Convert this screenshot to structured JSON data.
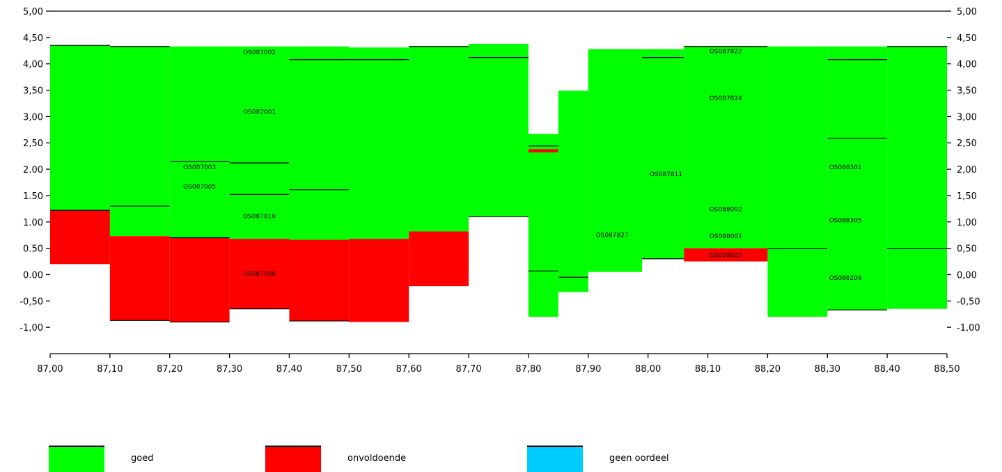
{
  "colors": {
    "goed": "#00ff00",
    "onvoldoende": "#ff0000",
    "geen_oordeel": "#00ccff",
    "axis": "#000000"
  },
  "chart_data": {
    "type": "bar",
    "x_ticks": [
      "87,00",
      "87,10",
      "87,20",
      "87,30",
      "87,40",
      "87,50",
      "87,60",
      "87,70",
      "87,80",
      "87,90",
      "88,00",
      "88,10",
      "88,20",
      "88,30",
      "88,40",
      "88,50"
    ],
    "y_ticks_left": [
      "5,00",
      "4,50",
      "4,00",
      "3,50",
      "3,00",
      "2,50",
      "2.00",
      "1.50",
      "1.00",
      "0.50",
      "0.00",
      "-0,50",
      "-1,00"
    ],
    "y_ticks_right": [
      "5,00",
      "4,50",
      "4,00",
      "3,50",
      "3,00",
      "2,50",
      "2,00",
      "1,50",
      "1,00",
      "0,50",
      "0,00",
      "-0,50",
      "-1,00"
    ],
    "xlim": [
      87.0,
      88.5
    ],
    "ylim": [
      -1.5,
      5.0
    ],
    "grid": false,
    "legend": "bottom",
    "series": [
      {
        "name": "goed",
        "key": "goed",
        "segments": [
          {
            "x0": 87.0,
            "x1": 87.1,
            "y0": 1.22,
            "y1": 4.35
          },
          {
            "x0": 87.1,
            "x1": 87.2,
            "y0": 0.73,
            "y1": 4.33
          },
          {
            "x0": 87.2,
            "x1": 87.3,
            "y0": 0.7,
            "y1": 4.33
          },
          {
            "x0": 87.3,
            "x1": 87.4,
            "y0": 0.68,
            "y1": 4.33
          },
          {
            "x0": 87.4,
            "x1": 87.5,
            "y0": 0.66,
            "y1": 4.33
          },
          {
            "x0": 87.5,
            "x1": 87.6,
            "y0": 0.68,
            "y1": 4.31
          },
          {
            "x0": 87.6,
            "x1": 87.7,
            "y0": 0.82,
            "y1": 4.33
          },
          {
            "x0": 87.7,
            "x1": 87.8,
            "y0": 1.1,
            "y1": 4.38
          },
          {
            "x0": 87.8,
            "x1": 87.85,
            "y0": -0.8,
            "y1": 2.67
          },
          {
            "x0": 87.85,
            "x1": 87.9,
            "y0": -0.33,
            "y1": 3.49
          },
          {
            "x0": 87.9,
            "x1": 87.99,
            "y0": 0.05,
            "y1": 4.28
          },
          {
            "x0": 87.99,
            "x1": 88.06,
            "y0": 0.3,
            "y1": 4.28
          },
          {
            "x0": 88.06,
            "x1": 88.2,
            "y0": 0.5,
            "y1": 4.33
          },
          {
            "x0": 88.2,
            "x1": 88.3,
            "y0": -0.8,
            "y1": 4.33
          },
          {
            "x0": 88.3,
            "x1": 88.4,
            "y0": -0.67,
            "y1": 4.33
          },
          {
            "x0": 88.4,
            "x1": 88.5,
            "y0": -0.65,
            "y1": 4.33
          }
        ]
      },
      {
        "name": "onvoldoende",
        "key": "onvoldoende",
        "segments": [
          {
            "x0": 87.0,
            "x1": 87.1,
            "y0": 0.2,
            "y1": 1.22
          },
          {
            "x0": 87.1,
            "x1": 87.2,
            "y0": -0.87,
            "y1": 0.73
          },
          {
            "x0": 87.2,
            "x1": 87.3,
            "y0": -0.9,
            "y1": 0.7
          },
          {
            "x0": 87.3,
            "x1": 87.4,
            "y0": -0.65,
            "y1": 0.68
          },
          {
            "x0": 87.4,
            "x1": 87.5,
            "y0": -0.88,
            "y1": 0.66
          },
          {
            "x0": 87.5,
            "x1": 87.6,
            "y0": -0.9,
            "y1": 0.68
          },
          {
            "x0": 87.6,
            "x1": 87.7,
            "y0": -0.22,
            "y1": 0.82
          },
          {
            "x0": 87.8,
            "x1": 87.85,
            "y0": 2.32,
            "y1": 2.38
          },
          {
            "x0": 88.06,
            "x1": 88.2,
            "y0": 0.25,
            "y1": 0.5
          }
        ]
      },
      {
        "name": "geen oordeel",
        "key": "geen_oordeel",
        "segments": []
      }
    ],
    "boundaries": [
      {
        "x0": 87.0,
        "x1": 87.1,
        "y": 4.35
      },
      {
        "x0": 87.0,
        "x1": 87.1,
        "y": 1.22
      },
      {
        "x0": 87.1,
        "x1": 87.2,
        "y": 4.33
      },
      {
        "x0": 87.1,
        "x1": 87.2,
        "y": 1.3
      },
      {
        "x0": 87.1,
        "x1": 87.2,
        "y": -0.87
      },
      {
        "x0": 87.2,
        "x1": 87.3,
        "y": 2.15
      },
      {
        "x0": 87.2,
        "x1": 87.3,
        "y": 0.7
      },
      {
        "x0": 87.2,
        "x1": 87.3,
        "y": -0.9
      },
      {
        "x0": 87.3,
        "x1": 87.4,
        "y": 2.12
      },
      {
        "x0": 87.3,
        "x1": 87.4,
        "y": 1.52
      },
      {
        "x0": 87.3,
        "x1": 87.4,
        "y": -0.65
      },
      {
        "x0": 87.4,
        "x1": 87.6,
        "y": 4.08
      },
      {
        "x0": 87.4,
        "x1": 87.5,
        "y": 1.61
      },
      {
        "x0": 87.4,
        "x1": 87.5,
        "y": -0.88
      },
      {
        "x0": 87.6,
        "x1": 87.7,
        "y": 4.33
      },
      {
        "x0": 87.7,
        "x1": 87.8,
        "y": 4.12
      },
      {
        "x0": 87.7,
        "x1": 87.8,
        "y": 1.1
      },
      {
        "x0": 87.8,
        "x1": 87.85,
        "y": 2.44
      },
      {
        "x0": 87.8,
        "x1": 87.85,
        "y": 0.07
      },
      {
        "x0": 87.85,
        "x1": 87.9,
        "y": -0.05
      },
      {
        "x0": 87.99,
        "x1": 88.06,
        "y": 4.12
      },
      {
        "x0": 87.99,
        "x1": 88.06,
        "y": 0.3
      },
      {
        "x0": 88.06,
        "x1": 88.2,
        "y": 4.33
      },
      {
        "x0": 88.2,
        "x1": 88.3,
        "y": 0.5
      },
      {
        "x0": 88.3,
        "x1": 88.4,
        "y": 4.08
      },
      {
        "x0": 88.3,
        "x1": 88.4,
        "y": 2.59
      },
      {
        "x0": 88.3,
        "x1": 88.4,
        "y": -0.67
      },
      {
        "x0": 88.4,
        "x1": 88.5,
        "y": 4.33
      },
      {
        "x0": 88.4,
        "x1": 88.5,
        "y": 0.5
      }
    ],
    "annotations": [
      {
        "text": "OS087002",
        "x": 87.35,
        "y": 4.22
      },
      {
        "text": "OS087001",
        "x": 87.35,
        "y": 3.09
      },
      {
        "text": "OS087003",
        "x": 87.25,
        "y": 2.04
      },
      {
        "text": "OS087005",
        "x": 87.25,
        "y": 1.67
      },
      {
        "text": "OS087010",
        "x": 87.35,
        "y": 1.11
      },
      {
        "text": "OS087006",
        "x": 87.35,
        "y": 0.02
      },
      {
        "text": "OS087827",
        "x": 87.94,
        "y": 0.75
      },
      {
        "text": "OS087811",
        "x": 88.03,
        "y": 1.91
      },
      {
        "text": "OS087822",
        "x": 88.13,
        "y": 4.24
      },
      {
        "text": "OS087824",
        "x": 88.13,
        "y": 3.35
      },
      {
        "text": "OS088002",
        "x": 88.13,
        "y": 1.24
      },
      {
        "text": "OS088001",
        "x": 88.13,
        "y": 0.73
      },
      {
        "text": "OS088005",
        "x": 88.13,
        "y": 0.37
      },
      {
        "text": "OS088301",
        "x": 88.33,
        "y": 2.04
      },
      {
        "text": "OS088305",
        "x": 88.33,
        "y": 1.03
      },
      {
        "text": "OS088209",
        "x": 88.33,
        "y": -0.06
      }
    ]
  },
  "legend": {
    "goed_label": "goed",
    "onvoldoende_label": "onvoldoende",
    "geen_oordeel_label": "geen oordeel"
  }
}
